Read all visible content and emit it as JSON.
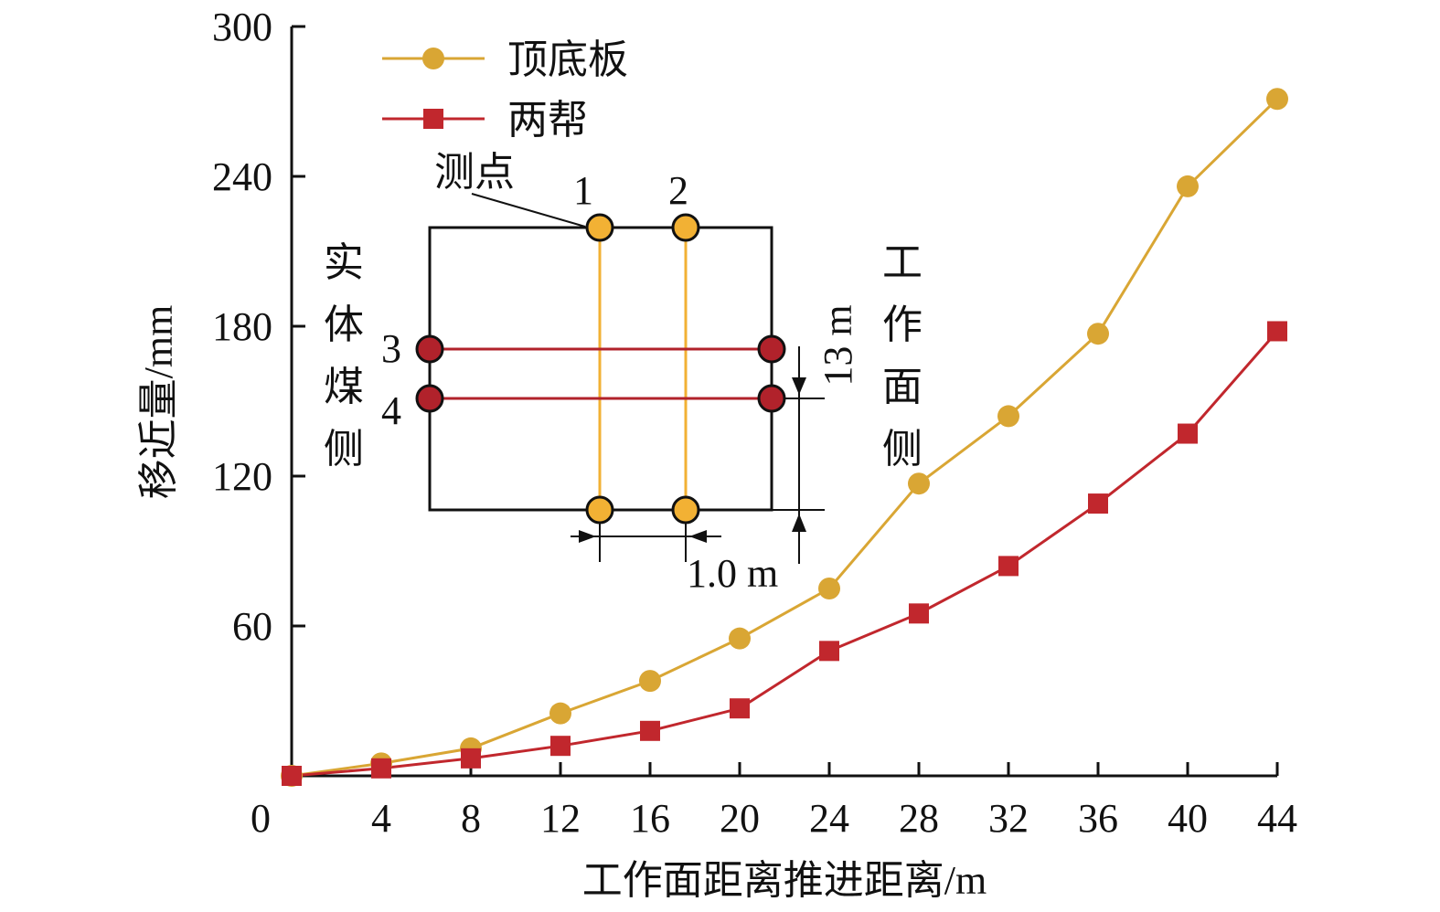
{
  "chart_data": {
    "type": "line",
    "xlabel": "工作面距离推进距离/m",
    "ylabel": "移近量/mm",
    "x_ticks": [
      0,
      4,
      8,
      12,
      16,
      20,
      24,
      28,
      32,
      36,
      40,
      44
    ],
    "y_ticks": [
      0,
      60,
      120,
      180,
      240,
      300
    ],
    "xlim": [
      0,
      44
    ],
    "ylim": [
      0,
      300
    ],
    "x": [
      0,
      4,
      8,
      12,
      16,
      20,
      24,
      28,
      32,
      36,
      40,
      44
    ],
    "series": [
      {
        "name": "顶底板",
        "color": "#D9A634",
        "marker": "circle",
        "values": [
          0,
          5,
          11,
          25,
          38,
          55,
          75,
          117,
          144,
          177,
          236,
          271
        ]
      },
      {
        "name": "两帮",
        "color": "#C1272D",
        "marker": "square",
        "values": [
          0,
          3,
          7,
          12,
          18,
          27,
          50,
          65,
          84,
          109,
          137,
          178
        ]
      }
    ],
    "legend_position": "top-left",
    "grid": false
  },
  "inset": {
    "measurement_point_label": "测点",
    "point_labels": [
      "1",
      "2",
      "3",
      "4"
    ],
    "left_side_label": "实体煤侧",
    "right_side_label": "工作面侧",
    "height_label": "13 m",
    "spacing_label": "1.0 m",
    "roof_floor_color": "#F2B134",
    "ribs_color": "#B1222B"
  }
}
